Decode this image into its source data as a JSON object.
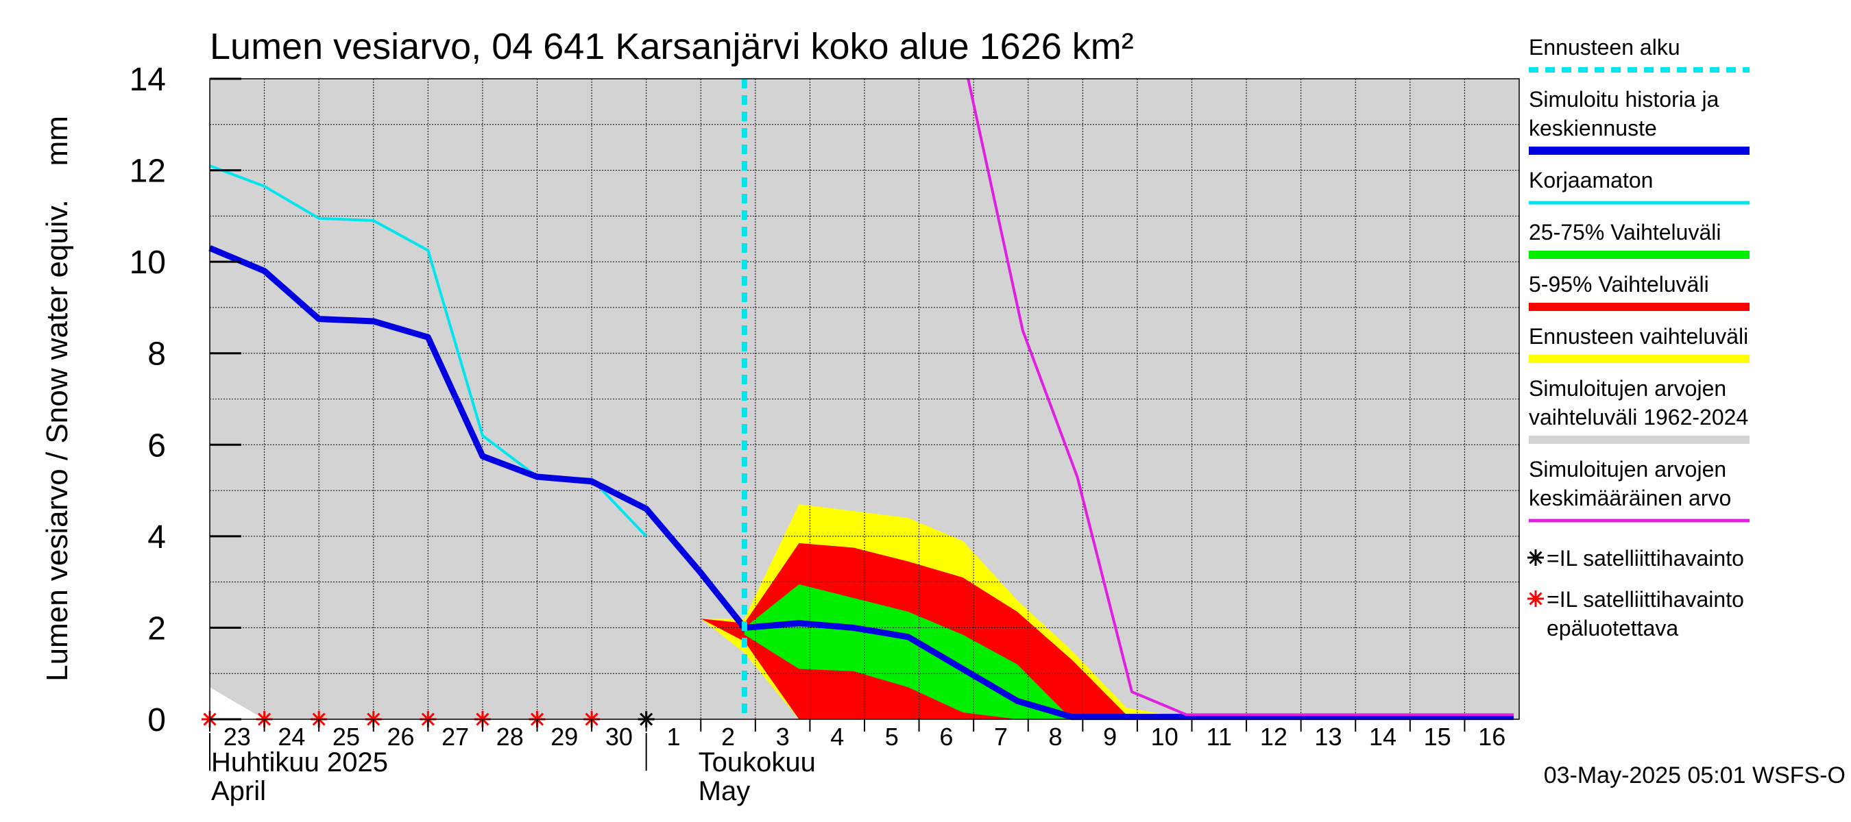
{
  "chart_data": {
    "type": "area",
    "title": "Lumen vesiarvo, 04 641 Karsanjärvi koko alue 1626 km²",
    "ylabel": "Lumen vesiarvo / Snow water equiv.    mm",
    "ylim": [
      0,
      14
    ],
    "yticks": [
      "0",
      "2",
      "4",
      "6",
      "8",
      "10",
      "12",
      "14"
    ],
    "x_day_range": [
      23,
      47
    ],
    "grid": true,
    "xticks": [
      {
        "day": 23,
        "label": "23"
      },
      {
        "day": 24,
        "label": "24"
      },
      {
        "day": 25,
        "label": "25"
      },
      {
        "day": 26,
        "label": "26"
      },
      {
        "day": 27,
        "label": "27"
      },
      {
        "day": 28,
        "label": "28"
      },
      {
        "day": 29,
        "label": "29"
      },
      {
        "day": 30,
        "label": "30"
      },
      {
        "day": 31,
        "label": "1"
      },
      {
        "day": 32,
        "label": "2"
      },
      {
        "day": 33,
        "label": "3"
      },
      {
        "day": 34,
        "label": "4"
      },
      {
        "day": 35,
        "label": "5"
      },
      {
        "day": 36,
        "label": "6"
      },
      {
        "day": 37,
        "label": "7"
      },
      {
        "day": 38,
        "label": "8"
      },
      {
        "day": 39,
        "label": "9"
      },
      {
        "day": 40,
        "label": "10"
      },
      {
        "day": 41,
        "label": "11"
      },
      {
        "day": 42,
        "label": "12"
      },
      {
        "day": 43,
        "label": "13"
      },
      {
        "day": 44,
        "label": "14"
      },
      {
        "day": 45,
        "label": "15"
      },
      {
        "day": 46,
        "label": "16"
      }
    ],
    "month_labels": [
      {
        "day": 23,
        "fi": "Huhtikuu  2025",
        "en": "April"
      },
      {
        "day": 32,
        "fi": "Toukokuu",
        "en": "May"
      }
    ],
    "forecast_start_day": 32.8,
    "historical_range": {
      "x": [
        23,
        24,
        47
      ],
      "lower": [
        0.7,
        0,
        0
      ],
      "upper": [
        14,
        14,
        14
      ]
    },
    "band_forecast_range": {
      "x": [
        32.0,
        32.8,
        33.8,
        34.8,
        35.8,
        36.8,
        37.8,
        38.8,
        39.8,
        40.8,
        46.9
      ],
      "lower": [
        2.2,
        1.45,
        0.0,
        0.0,
        0.0,
        0.0,
        0.0,
        0.0,
        0.0,
        0.0,
        0.0
      ],
      "upper": [
        2.2,
        2.2,
        4.7,
        4.55,
        4.4,
        3.9,
        2.6,
        1.5,
        0.25,
        0.05,
        0.05
      ]
    },
    "band_5_95": {
      "x": [
        32.0,
        32.8,
        33.8,
        34.8,
        35.8,
        36.8,
        37.8,
        38.8,
        39.8,
        40.8,
        46.9
      ],
      "lower": [
        2.2,
        1.7,
        0.0,
        0.0,
        0.0,
        0.0,
        0.0,
        0.0,
        0.0,
        0.0,
        0.0
      ],
      "upper": [
        2.2,
        2.1,
        3.85,
        3.75,
        3.45,
        3.1,
        2.35,
        1.3,
        0.1,
        0.02,
        0.02
      ]
    },
    "band_25_75": {
      "x": [
        32.8,
        33.8,
        34.8,
        35.8,
        36.8,
        37.8,
        38.8,
        39.8
      ],
      "lower": [
        1.85,
        1.1,
        1.05,
        0.7,
        0.15,
        0.0,
        0.0,
        0.0
      ],
      "upper": [
        2.0,
        2.95,
        2.65,
        2.35,
        1.85,
        1.2,
        0.0,
        0.0
      ]
    },
    "series": [
      {
        "name": "Korjaamaton",
        "color": "#00e5ee",
        "x": [
          23,
          24,
          25,
          26,
          27,
          28,
          29,
          30,
          31
        ],
        "values": [
          12.1,
          11.65,
          10.95,
          10.9,
          10.25,
          6.2,
          5.3,
          5.25,
          4.0
        ]
      },
      {
        "name": "Simuloitu historia ja keskiennuste",
        "color": "#0000e0",
        "x": [
          23,
          24,
          25,
          26,
          27,
          28,
          29,
          30,
          31,
          32,
          32.8,
          33.8,
          34.8,
          35.8,
          36.8,
          37.8,
          38.8,
          39.8,
          40.8,
          46.9
        ],
        "values": [
          10.3,
          9.8,
          8.75,
          8.7,
          8.35,
          5.75,
          5.3,
          5.2,
          4.6,
          3.2,
          2.0,
          2.1,
          2.0,
          1.8,
          1.1,
          0.4,
          0.05,
          0.05,
          0.05,
          0.05
        ]
      },
      {
        "name": "Simuloitujen arvojen keskimääräinen arvo",
        "color": "#e020e0",
        "x": [
          36.9,
          37.9,
          38.9,
          39.9,
          40.9,
          46.9
        ],
        "values": [
          14.0,
          8.5,
          5.3,
          0.6,
          0.1,
          0.1
        ]
      }
    ],
    "satellite_observations": [
      {
        "day": 23,
        "value": 0,
        "reliable": false
      },
      {
        "day": 24,
        "value": 0,
        "reliable": false
      },
      {
        "day": 25,
        "value": 0,
        "reliable": false
      },
      {
        "day": 26,
        "value": 0,
        "reliable": false
      },
      {
        "day": 27,
        "value": 0,
        "reliable": false
      },
      {
        "day": 28,
        "value": 0,
        "reliable": false
      },
      {
        "day": 29,
        "value": 0,
        "reliable": false
      },
      {
        "day": 30,
        "value": 0,
        "reliable": false
      },
      {
        "day": 31,
        "value": 0,
        "reliable": true
      }
    ],
    "legend": [
      {
        "lines": [
          "Ennusteen alku"
        ],
        "color": "#00e5ee",
        "style": "dashed"
      },
      {
        "lines": [
          "Simuloitu historia ja",
          "keskiennuste"
        ],
        "color": "#0000e0",
        "style": "thick"
      },
      {
        "lines": [
          "Korjaamaton"
        ],
        "color": "#00e5ee",
        "style": "line"
      },
      {
        "lines": [
          "25-75% Vaihteluväli"
        ],
        "color": "#00ee00",
        "style": "band"
      },
      {
        "lines": [
          "5-95% Vaihteluväli"
        ],
        "color": "#ff0000",
        "style": "band"
      },
      {
        "lines": [
          "Ennusteen vaihteluväli"
        ],
        "color": "#ffff00",
        "style": "band"
      },
      {
        "lines": [
          "Simuloitujen arvojen",
          "vaihteluväli 1962-2024"
        ],
        "color": "#d3d3d3",
        "style": "band"
      },
      {
        "lines": [
          "Simuloitujen arvojen",
          "keskimääräinen arvo"
        ],
        "color": "#e020e0",
        "style": "line"
      },
      {
        "lines": [
          "=IL satelliittihavainto"
        ],
        "color": "#000000",
        "style": "star"
      },
      {
        "lines": [
          "=IL satelliittihavainto",
          "epäluotettava"
        ],
        "color": "#ff0000",
        "style": "star"
      }
    ],
    "footer": "03-May-2025 05:01 WSFS-O"
  }
}
